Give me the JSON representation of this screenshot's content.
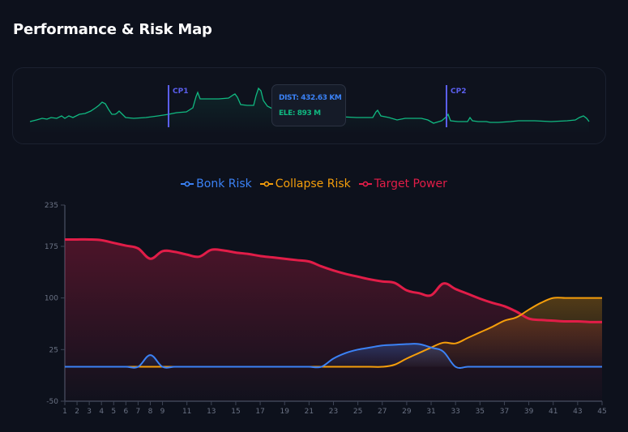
{
  "page": {
    "title": "Performance & Risk Map"
  },
  "elevation_panel": {
    "checkpoints": [
      {
        "label": "CP1",
        "x": 208
      },
      {
        "label": "CP2",
        "x": 551
      }
    ],
    "tooltip": {
      "dist": "DIST: 432.63 KM",
      "ele": "ELE: 893 M"
    },
    "line_color": "#10b981",
    "checkpoint_color": "#5b5fef"
  },
  "legend": [
    {
      "label": "Bonk Risk",
      "color": "#3b82f6"
    },
    {
      "label": "Collapse Risk",
      "color": "#f59e0b"
    },
    {
      "label": "Target Power",
      "color": "#e11d48"
    }
  ],
  "chart_data": {
    "type": "area",
    "title": "",
    "xlabel": "",
    "ylabel": "",
    "ylim": [
      -50,
      235
    ],
    "yticks": [
      235,
      175,
      100,
      25,
      -50
    ],
    "x": [
      1,
      2,
      3,
      4,
      5,
      6,
      7,
      8,
      9,
      10,
      11,
      12,
      13,
      14,
      15,
      16,
      17,
      18,
      19,
      20,
      21,
      22,
      23,
      24,
      25,
      26,
      27,
      28,
      29,
      30,
      31,
      32,
      33,
      34,
      35,
      36,
      37,
      38,
      39,
      40,
      41,
      42,
      43,
      44,
      45
    ],
    "xtick_labels": [
      "1",
      "2",
      "3",
      "4",
      "5",
      "6",
      "7",
      "8",
      "9",
      "11",
      "13",
      "15",
      "17",
      "19",
      "21",
      "23",
      "25",
      "27",
      "29",
      "31",
      "33",
      "35",
      "37",
      "39",
      "41",
      "43",
      "45"
    ],
    "grid": false,
    "legend_position": "top",
    "series": [
      {
        "name": "Bonk Risk",
        "color": "#3b82f6",
        "values": [
          0,
          0,
          0,
          0,
          0,
          0,
          0,
          17,
          0,
          0,
          0,
          0,
          0,
          0,
          0,
          0,
          0,
          0,
          0,
          0,
          0,
          0,
          12,
          20,
          25,
          28,
          31,
          32,
          33,
          33,
          28,
          22,
          0,
          0,
          0,
          0,
          0,
          0,
          0,
          0,
          0,
          0,
          0,
          0,
          0
        ]
      },
      {
        "name": "Collapse Risk",
        "color": "#f59e0b",
        "values": [
          0,
          0,
          0,
          0,
          0,
          0,
          0,
          0,
          0,
          0,
          0,
          0,
          0,
          0,
          0,
          0,
          0,
          0,
          0,
          0,
          0,
          0,
          0,
          0,
          0,
          0,
          0,
          3,
          12,
          20,
          28,
          35,
          34,
          42,
          50,
          58,
          67,
          72,
          83,
          93,
          100,
          100,
          100,
          100,
          100
        ]
      },
      {
        "name": "Target Power",
        "color": "#e11d48",
        "values": [
          185,
          185,
          185,
          184,
          180,
          176,
          172,
          157,
          168,
          167,
          163,
          160,
          170,
          169,
          166,
          164,
          161,
          159,
          157,
          155,
          153,
          146,
          140,
          135,
          131,
          127,
          124,
          122,
          111,
          107,
          104,
          121,
          113,
          106,
          99,
          93,
          88,
          80,
          70,
          68,
          67,
          66,
          66,
          65,
          65
        ]
      }
    ]
  }
}
